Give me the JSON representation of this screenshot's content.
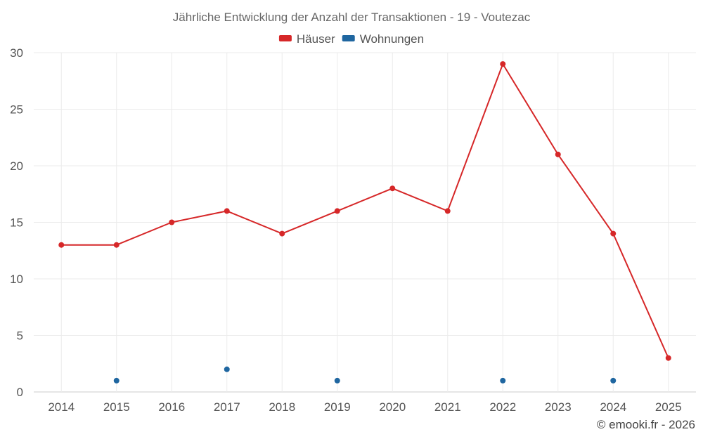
{
  "chart_data": {
    "type": "line",
    "title": "Jährliche Entwicklung der Anzahl der Transaktionen - 19 - Voutezac",
    "categories": [
      "2014",
      "2015",
      "2016",
      "2017",
      "2018",
      "2019",
      "2020",
      "2021",
      "2022",
      "2023",
      "2024",
      "2025"
    ],
    "series": [
      {
        "name": "Häuser",
        "color": "#d62728",
        "style": "line",
        "values": [
          13,
          13,
          15,
          16,
          14,
          16,
          18,
          16,
          29,
          21,
          14,
          3
        ]
      },
      {
        "name": "Wohnungen",
        "color": "#1f66a0",
        "style": "points",
        "values": [
          null,
          1,
          null,
          2,
          null,
          1,
          null,
          null,
          1,
          null,
          1,
          null
        ]
      }
    ],
    "ylim": [
      0,
      30
    ],
    "yticks": [
      0,
      5,
      10,
      15,
      20,
      25,
      30
    ],
    "grid": true,
    "legend_position": "top-center",
    "xlabel": "",
    "ylabel": ""
  },
  "credit": "© emooki.fr - 2026"
}
